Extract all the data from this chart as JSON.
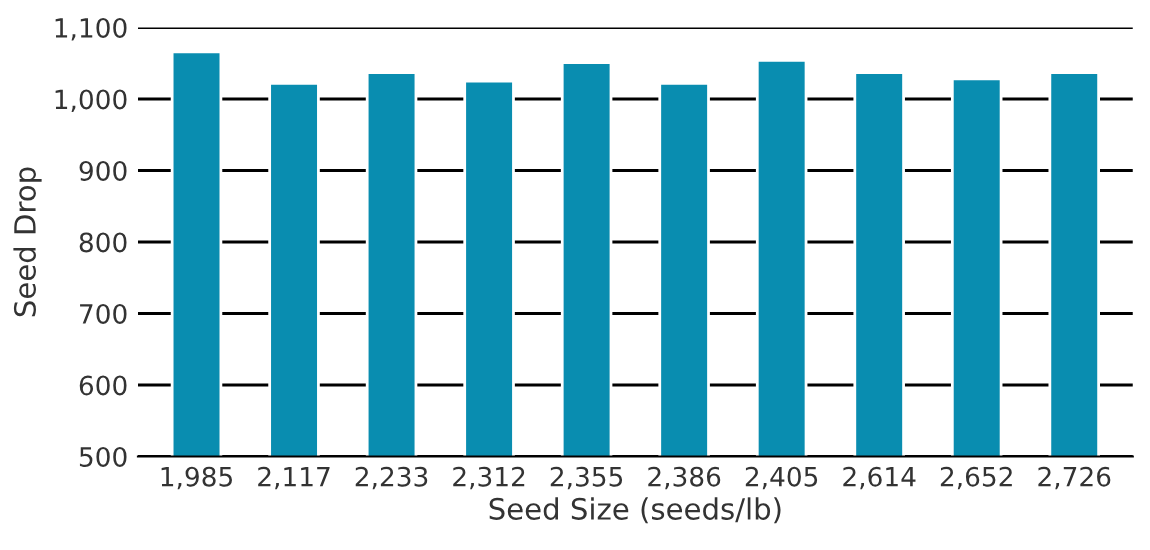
{
  "chart_data": {
    "type": "bar",
    "xlabel": "Seed Size (seeds/lb)",
    "ylabel": "Seed Drop",
    "categories": [
      "1,985",
      "2,117",
      "2,233",
      "2,312",
      "2,355",
      "2,386",
      "2,405",
      "2,614",
      "2,652",
      "2,726"
    ],
    "series": [
      {
        "color": "#098db0",
        "values": [
          1066,
          1022,
          1037,
          1025,
          1051,
          1022,
          1054,
          1037,
          1028,
          1037
        ]
      }
    ],
    "ylim": [
      500,
      1100
    ],
    "yticks": [
      {
        "value": 500,
        "label": "500"
      },
      {
        "value": 600,
        "label": "600"
      },
      {
        "value": 700,
        "label": "700"
      },
      {
        "value": 800,
        "label": "800"
      },
      {
        "value": 900,
        "label": "900"
      },
      {
        "value": 1000,
        "label": "1,000"
      },
      {
        "value": 1100,
        "label": "1,100"
      }
    ],
    "grid": "y"
  }
}
